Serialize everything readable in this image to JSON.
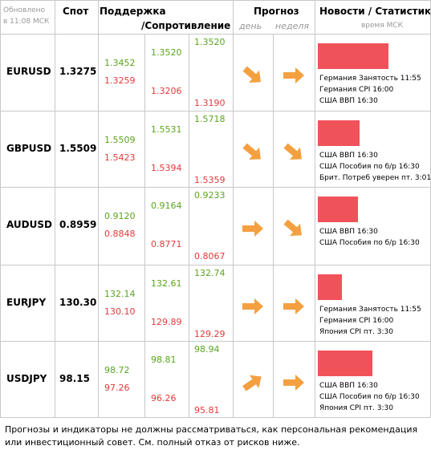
{
  "header": {
    "updated": [
      "Обновлено",
      "в 11:08 МСК"
    ],
    "spot": "Спот",
    "support": "Поддержка",
    "resistance": "/Сопротивление",
    "forecast": "Прогноз",
    "day": "день",
    "week": "неделя",
    "news": "Новости / Статистика",
    "time": "время МСК"
  },
  "rows": [
    {
      "pair": "EURUSD",
      "spot": "1.3275",
      "levels": [
        [
          "1.3452",
          "1.3259"
        ],
        [
          "1.3520",
          "1.3206"
        ],
        [
          "1.3520",
          "1.3190"
        ]
      ],
      "news": [
        "Германия Занятость 11:55",
        "Германия CPI 16:00",
        "США ВВП 16:30"
      ]
    },
    {
      "pair": "GBPUSD",
      "spot": "1.5509",
      "levels": [
        [
          "1.5509",
          "1.5423"
        ],
        [
          "1.5531",
          "1.5394"
        ],
        [
          "1.5718",
          "1.5359"
        ]
      ],
      "news": [
        "США ВВП 16:30",
        "США Пособия по б/р 16:30",
        "Брит. Потреб уверен пт. 3:01"
      ]
    },
    {
      "pair": "AUDUSD",
      "spot": "0.8959",
      "levels": [
        [
          "0.9120",
          "0.8848"
        ],
        [
          "0.9164",
          "0.8771"
        ],
        [
          "0.9233",
          "0.8067"
        ]
      ],
      "news": [
        "США ВВП 16:30",
        "США Пособия по б/р 16:30"
      ]
    },
    {
      "pair": "EURJPY",
      "spot": "130.30",
      "levels": [
        [
          "132.14",
          "130.10"
        ],
        [
          "132.61",
          "129.89"
        ],
        [
          "132.74",
          "129.29"
        ]
      ],
      "news": [
        "Германия Занятость 11:55",
        "Германия CPI 16:00",
        "Япония CPI пт. 3:30"
      ]
    },
    {
      "pair": "USDJPY",
      "spot": "98.15",
      "levels": [
        [
          "98.72",
          "97.26"
        ],
        [
          "98.81",
          "96.26"
        ],
        [
          "98.94",
          "95.81"
        ]
      ],
      "news": [
        "США ВВП 16:30",
        "США Пособия по б/р 16:30",
        "Япония CPI пт. 3:30"
      ]
    }
  ],
  "footer": "Прогнозы и индикаторы не должны рассматриваться, как персональная рекомендация или инвестиционный совет. См. полный отказ от рисков ниже."
}
